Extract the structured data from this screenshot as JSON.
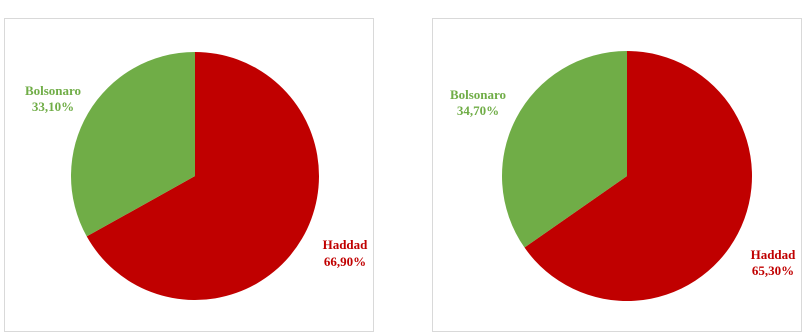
{
  "chart_data": [
    {
      "type": "pie",
      "title": "",
      "slices": [
        {
          "label": "Haddad",
          "value": 66.9,
          "value_label": "66,90%",
          "color": "#c00000"
        },
        {
          "label": "Bolsonaro",
          "value": 33.1,
          "value_label": "33,10%",
          "color": "#70ad47"
        }
      ]
    },
    {
      "type": "pie",
      "title": "",
      "slices": [
        {
          "label": "Haddad",
          "value": 65.3,
          "value_label": "65,30%",
          "color": "#c00000"
        },
        {
          "label": "Bolsonaro",
          "value": 34.7,
          "value_label": "34,70%",
          "color": "#70ad47"
        }
      ]
    }
  ]
}
